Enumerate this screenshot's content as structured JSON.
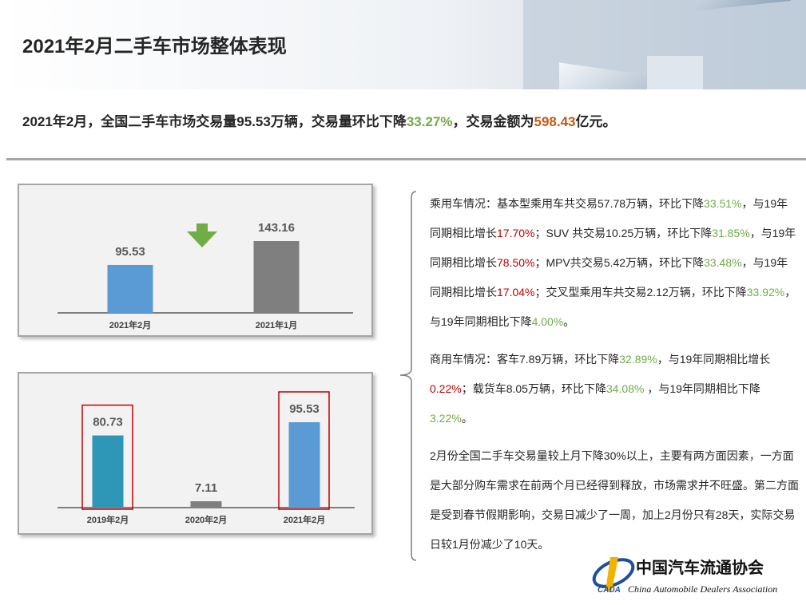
{
  "header": {
    "title": "2021年2月二手车市场整体表现"
  },
  "summary": {
    "runs": [
      {
        "text": "2021年2月，全国二手车市场交易量95.53万辆，交易量环比下降"
      },
      {
        "text": "33.27%",
        "color": "#70ad47"
      },
      {
        "text": "，交易金额为"
      },
      {
        "text": "598.43",
        "color": "#c55a11"
      },
      {
        "text": "亿元。"
      }
    ]
  },
  "chart_data": [
    {
      "type": "bar",
      "categories": [
        "2021年2月",
        "2021年1月"
      ],
      "values": [
        95.53,
        143.16
      ],
      "colors": [
        "#5b9bd5",
        "#7f7f7f"
      ],
      "highlighted": [
        false,
        false
      ]
    },
    {
      "type": "bar",
      "categories": [
        "2019年2月",
        "2020年2月",
        "2021年2月"
      ],
      "values": [
        80.73,
        7.11,
        95.53
      ],
      "colors": [
        "#2e97b8",
        "#7f7f7f",
        "#5b9bd5"
      ],
      "highlighted": [
        true,
        false,
        true
      ]
    }
  ],
  "notes": [
    {
      "runs": [
        {
          "text": "乘用车情况：基本型乘用车共交易57.78万辆，环比下降"
        },
        {
          "text": "33.51%",
          "color": "#70ad47"
        },
        {
          "text": "，与19年同期相比增长"
        },
        {
          "text": "17.70%",
          "color": "#c00000"
        },
        {
          "text": "；SUV 共交易10.25万辆，环比下降"
        },
        {
          "text": "31.85%",
          "color": "#70ad47"
        },
        {
          "text": "，与19年同期相比增长"
        },
        {
          "text": "78.50%",
          "color": "#c00000"
        },
        {
          "text": "；MPV共交易5.42万辆，环比下降"
        },
        {
          "text": "33.48%",
          "color": "#70ad47"
        },
        {
          "text": "，与19年同期相比增长"
        },
        {
          "text": "17.04%",
          "color": "#c00000"
        },
        {
          "text": "；交叉型乘用车共交易2.12万辆，环比下降"
        },
        {
          "text": "33.92%",
          "color": "#70ad47"
        },
        {
          "text": "，与19年同期相比下降"
        },
        {
          "text": "4.00%",
          "color": "#70ad47"
        },
        {
          "text": "。"
        }
      ]
    },
    {
      "runs": [
        {
          "text": "商用车情况：客车7.89万辆，环比下降"
        },
        {
          "text": "32.89%",
          "color": "#70ad47"
        },
        {
          "text": "，与19年同期相比增长"
        },
        {
          "text": "0.22%",
          "color": "#c00000"
        },
        {
          "text": "；载货车8.05万辆，环比下降"
        },
        {
          "text": "34.08%",
          "color": "#70ad47"
        },
        {
          "text": " ，与19年同期相比下降"
        },
        {
          "text": "3.22%",
          "color": "#70ad47"
        },
        {
          "text": "。"
        }
      ]
    },
    {
      "runs": [
        {
          "text": "2月份全国二手车交易量较上月下降30%以上，主要有两方面因素，一方面是大部分购车需求在前两个月已经得到释放，市场需求并不旺盛。第二方面是受到春节假期影响，交易日减少了一周，加上2月份只有28天，实际交易日较1月份减少了10天。"
        }
      ]
    }
  ],
  "logo": {
    "name": "中国汽车流通协会",
    "english": "China Automobile Dealers Association",
    "abbr": "CADA"
  }
}
